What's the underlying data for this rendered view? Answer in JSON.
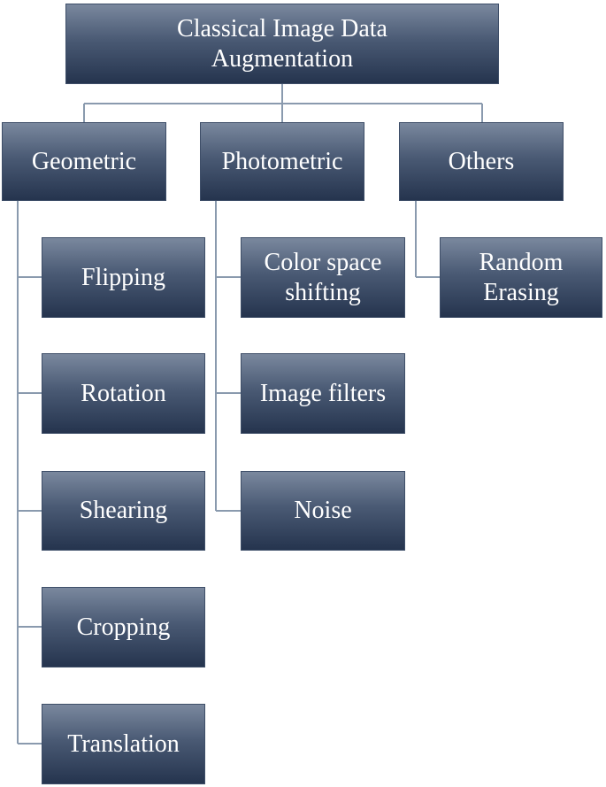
{
  "root": {
    "label": "Classical Image  Data\nAugmentation"
  },
  "categories": [
    {
      "label": "Geometric",
      "items": [
        "Flipping",
        "Rotation",
        "Shearing",
        "Cropping",
        "Translation"
      ]
    },
    {
      "label": "Photometric",
      "items": [
        "Color space\nshifting",
        "Image filters",
        "Noise"
      ]
    },
    {
      "label": "Others",
      "items": [
        "Random\nErasing"
      ]
    }
  ],
  "colors": {
    "box_top": "#7a889e",
    "box_bottom": "#25344e",
    "connector": "#8a9aae",
    "text": "#ffffff"
  }
}
